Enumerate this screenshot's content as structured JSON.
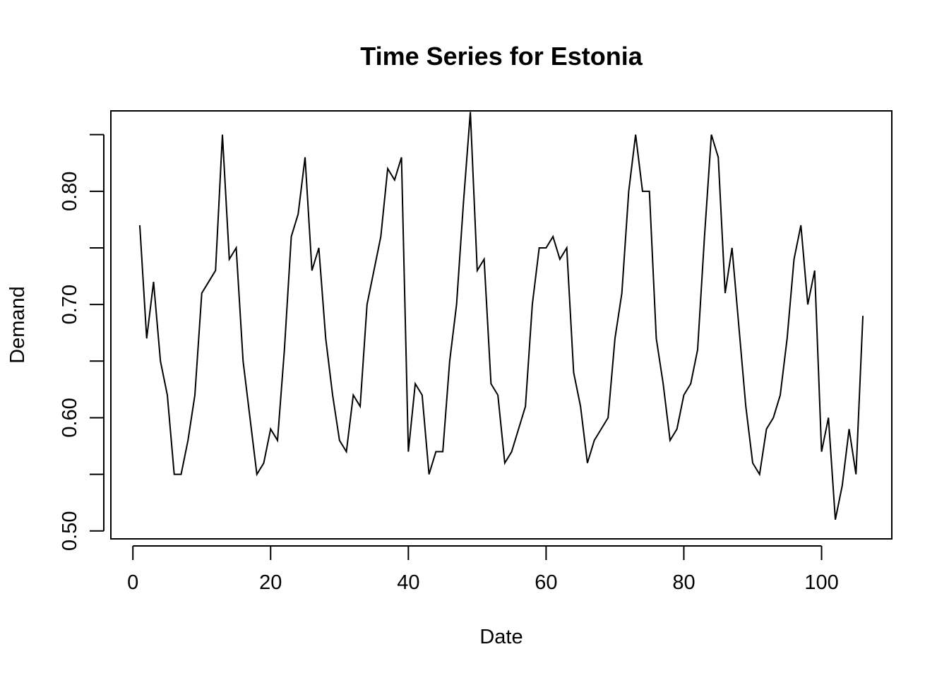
{
  "chart_data": {
    "type": "line",
    "title": "Time Series for Estonia",
    "xlabel": "Date",
    "ylabel": "Demand",
    "xlim": [
      -3.2,
      110.2
    ],
    "ylim": [
      0.493,
      0.871
    ],
    "x_ticks": [
      0,
      20,
      40,
      60,
      80,
      100
    ],
    "x_tick_labels": [
      "0",
      "20",
      "40",
      "60",
      "80",
      "100"
    ],
    "y_ticks": [
      0.5,
      0.55,
      0.6,
      0.65,
      0.7,
      0.75,
      0.8,
      0.85
    ],
    "y_tick_labels": [
      "0.50",
      "",
      "0.60",
      "",
      "0.70",
      "",
      "0.80",
      ""
    ],
    "grid": false,
    "series": [
      {
        "x": [
          1,
          2,
          3,
          4,
          5,
          6,
          7,
          8,
          9,
          10,
          11,
          12,
          13,
          14,
          15,
          16,
          17,
          18,
          19,
          20,
          21,
          22,
          23,
          24,
          25,
          26,
          27,
          28,
          29,
          30,
          31,
          32,
          33,
          34,
          35,
          36,
          37,
          38,
          39,
          40,
          41,
          42,
          43,
          44,
          45,
          46,
          47,
          48,
          49,
          50,
          51,
          52,
          53,
          54,
          55,
          56,
          57,
          58,
          59,
          60,
          61,
          62,
          63,
          64,
          65,
          66,
          67,
          68,
          69,
          70,
          71,
          72,
          73,
          74,
          75,
          76,
          77,
          78,
          79,
          80,
          81,
          82,
          83,
          84,
          85,
          86,
          87,
          88,
          89,
          90,
          91,
          92,
          93,
          94,
          95,
          96,
          97,
          98,
          99,
          100,
          101,
          102,
          103,
          104,
          105,
          106
        ],
        "y": [
          0.77,
          0.67,
          0.72,
          0.65,
          0.62,
          0.55,
          0.55,
          0.58,
          0.62,
          0.71,
          0.72,
          0.73,
          0.85,
          0.74,
          0.75,
          0.65,
          0.6,
          0.55,
          0.56,
          0.59,
          0.58,
          0.66,
          0.76,
          0.78,
          0.83,
          0.73,
          0.75,
          0.67,
          0.62,
          0.58,
          0.57,
          0.62,
          0.61,
          0.7,
          0.73,
          0.76,
          0.82,
          0.81,
          0.83,
          0.57,
          0.63,
          0.62,
          0.55,
          0.57,
          0.57,
          0.65,
          0.7,
          0.79,
          0.87,
          0.73,
          0.74,
          0.63,
          0.62,
          0.56,
          0.57,
          0.59,
          0.61,
          0.7,
          0.75,
          0.75,
          0.76,
          0.74,
          0.75,
          0.64,
          0.61,
          0.56,
          0.58,
          0.59,
          0.6,
          0.67,
          0.71,
          0.8,
          0.85,
          0.8,
          0.8,
          0.67,
          0.63,
          0.58,
          0.59,
          0.62,
          0.63,
          0.66,
          0.76,
          0.85,
          0.83,
          0.71,
          0.75,
          0.68,
          0.61,
          0.56,
          0.55,
          0.59,
          0.6,
          0.62,
          0.67,
          0.74,
          0.77,
          0.7,
          0.73,
          0.57,
          0.6,
          0.51,
          0.54,
          0.59,
          0.55,
          0.69
        ]
      }
    ]
  }
}
